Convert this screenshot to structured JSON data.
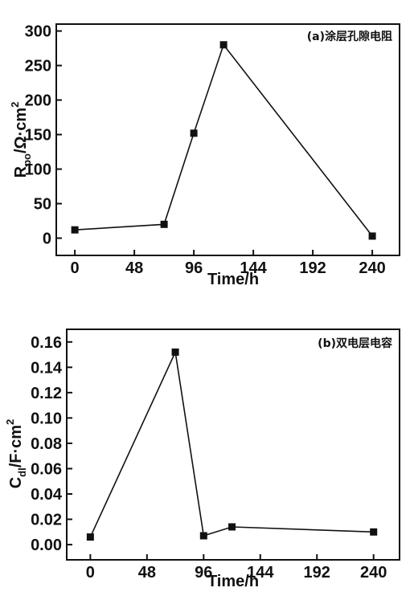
{
  "chart_data": [
    {
      "type": "line",
      "annotation": "(a)涂层孔隙电阻",
      "xlabel": "Time/h",
      "ylabel_main": "R",
      "ylabel_sub": "po",
      "ylabel_rest": "/Ω·cm",
      "ylabel_sup": "2",
      "xticks": [
        "0",
        "48",
        "96",
        "144",
        "192",
        "240"
      ],
      "yticks": [
        "0",
        "50",
        "100",
        "150",
        "200",
        "250",
        "300"
      ],
      "xlim": [
        -15,
        262
      ],
      "ylim": [
        -25,
        310
      ],
      "x": [
        0,
        72,
        96,
        120,
        240
      ],
      "y": [
        12,
        20,
        152,
        280,
        3
      ]
    },
    {
      "type": "line",
      "annotation": "(b)双电层电容",
      "xlabel": "Time/h",
      "ylabel_main": "C",
      "ylabel_sub": "dl",
      "ylabel_rest": "/F·cm",
      "ylabel_sup": "2",
      "xticks": [
        "0",
        "48",
        "96",
        "144",
        "192",
        "240"
      ],
      "yticks": [
        "0.00",
        "0.02",
        "0.04",
        "0.06",
        "0.08",
        "0.10",
        "0.12",
        "0.14",
        "0.16"
      ],
      "xlim": [
        -20,
        262
      ],
      "ylim": [
        -0.012,
        0.17
      ],
      "x": [
        0,
        72,
        96,
        120,
        240
      ],
      "y": [
        0.006,
        0.152,
        0.007,
        0.014,
        0.01
      ]
    }
  ]
}
